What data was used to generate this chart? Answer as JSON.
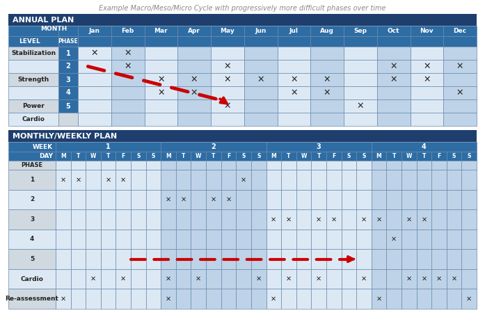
{
  "title": "Example Macro/Meso/Micro Cycle with progressively more difficult phases over time",
  "title_color": "#888888",
  "dark_blue": "#1e3f6e",
  "med_blue": "#2e6ca4",
  "light_blue": "#bed3e8",
  "lighter_blue": "#dce9f5",
  "label_grey": "#d0d8e0",
  "phase_col_blue": "#4472aa",
  "border_color": "#6a8aaa",
  "text_dark": "#333333",
  "annual_header": "ANNUAL PLAN",
  "monthly_header": "MONTHLY/WEEKLY PLAN",
  "months": [
    "Jan",
    "Feb",
    "Mar",
    "Apr",
    "May",
    "Jun",
    "Jul",
    "Aug",
    "Sep",
    "Oct",
    "Nov",
    "Dec"
  ],
  "annual_phases": [
    "1",
    "2",
    "3",
    "4",
    "5",
    ""
  ],
  "level_merges": [
    {
      "label": "Stabilization",
      "start": 0,
      "end": 0
    },
    {
      "label": "Strength",
      "start": 1,
      "end": 3
    },
    {
      "label": "Power",
      "start": 4,
      "end": 4
    },
    {
      "label": "Cardio",
      "start": 5,
      "end": 5
    }
  ],
  "annual_x_marks": [
    [
      0,
      1
    ],
    [
      1,
      4,
      9,
      10,
      11
    ],
    [
      2,
      3,
      4,
      5,
      6,
      7,
      9,
      10
    ],
    [
      2,
      3,
      6,
      7,
      11
    ],
    [
      4,
      8
    ],
    []
  ],
  "weeks": [
    "1",
    "2",
    "3",
    "4"
  ],
  "days": [
    "M",
    "T",
    "W",
    "T",
    "F",
    "S",
    "S",
    "M",
    "T",
    "W",
    "T",
    "F",
    "S",
    "S",
    "M",
    "T",
    "W",
    "T",
    "F",
    "S",
    "S",
    "M",
    "T",
    "W",
    "T",
    "F",
    "S",
    "S"
  ],
  "monthly_phases": [
    "1",
    "2",
    "3",
    "4",
    "5",
    "Cardio",
    "Re-assessment"
  ],
  "monthly_x_marks": [
    [
      0,
      1,
      3,
      4,
      12
    ],
    [
      7,
      8,
      10,
      11
    ],
    [
      14,
      15,
      17,
      18,
      20,
      21,
      23,
      24
    ],
    [
      22
    ],
    [],
    [
      2,
      4,
      7,
      9,
      13,
      15,
      17,
      20,
      23,
      24,
      25,
      26
    ],
    [
      0,
      7,
      14,
      21,
      27
    ]
  ],
  "arrow_color": "#cc0000"
}
